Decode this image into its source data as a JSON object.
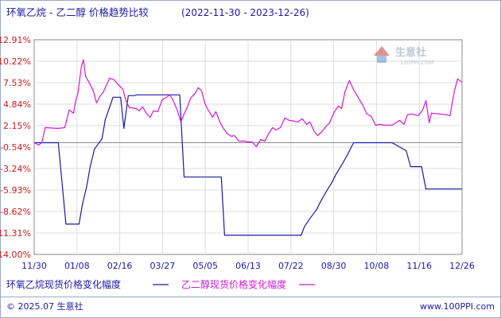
{
  "header": {
    "title_main": "环氧乙烷 - 乙二醇 价格趋势比较",
    "title_range": "(2022-11-30 - 2023-12-26)"
  },
  "logo": {
    "text": "生意社",
    "url_text": "100PPI.COM"
  },
  "legend": {
    "s1_label": "环氧乙烷现货价格变化幅度",
    "s2_label": "乙二醇现货价格变化幅度"
  },
  "footer": {
    "left": "© 2025.07 生意社",
    "right": "www.100PPI.com"
  },
  "colors": {
    "series1": "#1a1aa6",
    "series2": "#d21ad2",
    "grid": "#dddddd",
    "zero": "#888888",
    "title": "#1a1aa6"
  },
  "chart_data": {
    "type": "line",
    "title": "环氧乙烷 - 乙二醇 价格趋势比较",
    "subtitle": "(2022-11-30 - 2023-12-26)",
    "xlabel": "",
    "ylabel": "",
    "x_ticks": [
      "11/30",
      "01/08",
      "02/16",
      "03/27",
      "05/05",
      "06/13",
      "07/22",
      "08/30",
      "10/08",
      "11/16",
      "12/26"
    ],
    "y_ticks": [
      "12.91%",
      "10.22%",
      "7.53%",
      "4.84%",
      "2.15%",
      "-0.54%",
      "-3.24%",
      "-5.93%",
      "-8.62%",
      "-11.31%",
      "-14.00%"
    ],
    "ylim": [
      -14.0,
      12.91
    ],
    "xlim": [
      "2022-11-30",
      "2023-12-26"
    ],
    "grid": true,
    "legend_position": "bottom",
    "series": [
      {
        "name": "环氧乙烷现货价格变化幅度",
        "color": "#1a1aa6",
        "points": [
          [
            "2022-11-30",
            0
          ],
          [
            "2022-12-22",
            0
          ],
          [
            "2022-12-29",
            -10.2
          ],
          [
            "2023-01-10",
            -10.2
          ],
          [
            "2023-01-13",
            -7.8
          ],
          [
            "2023-01-17",
            -5.5
          ],
          [
            "2023-01-20",
            -3.1
          ],
          [
            "2023-01-24",
            -0.8
          ],
          [
            "2023-01-31",
            0.5
          ],
          [
            "2023-02-03",
            2.9
          ],
          [
            "2023-02-10",
            5.7
          ],
          [
            "2023-02-17",
            5.7
          ],
          [
            "2023-02-20",
            1.8
          ],
          [
            "2023-02-24",
            5.9
          ],
          [
            "2023-03-01",
            5.9
          ],
          [
            "2023-03-04",
            6.0
          ],
          [
            "2023-04-12",
            6.0
          ],
          [
            "2023-04-16",
            -4.3
          ],
          [
            "2023-05-20",
            -4.3
          ],
          [
            "2023-05-23",
            -11.6
          ],
          [
            "2023-08-01",
            -11.6
          ],
          [
            "2023-08-04",
            -10.5
          ],
          [
            "2023-08-09",
            -9.5
          ],
          [
            "2023-08-15",
            -8.4
          ],
          [
            "2023-08-19",
            -7.3
          ],
          [
            "2023-08-24",
            -6.1
          ],
          [
            "2023-08-29",
            -5.0
          ],
          [
            "2023-09-02",
            -3.9
          ],
          [
            "2023-09-07",
            -2.8
          ],
          [
            "2023-09-12",
            -1.6
          ],
          [
            "2023-09-16",
            -0.5
          ],
          [
            "2023-09-18",
            0
          ],
          [
            "2023-10-23",
            0
          ],
          [
            "2023-11-05",
            -1.0
          ],
          [
            "2023-11-09",
            -3.0
          ],
          [
            "2023-11-19",
            -3.0
          ],
          [
            "2023-11-23",
            -5.8
          ],
          [
            "2023-12-26",
            -5.8
          ]
        ]
      },
      {
        "name": "乙二醇现货价格变化幅度",
        "color": "#d21ad2",
        "points": [
          [
            "2022-11-30",
            0
          ],
          [
            "2022-12-04",
            -0.3
          ],
          [
            "2022-12-07",
            0
          ],
          [
            "2022-12-10",
            1.9
          ],
          [
            "2022-12-22",
            1.8
          ],
          [
            "2022-12-28",
            1.9
          ],
          [
            "2023-01-01",
            4.1
          ],
          [
            "2023-01-05",
            3.7
          ],
          [
            "2023-01-07",
            5.3
          ],
          [
            "2023-01-09",
            6.2
          ],
          [
            "2023-01-12",
            9.5
          ],
          [
            "2023-01-14",
            10.4
          ],
          [
            "2023-01-16",
            8.3
          ],
          [
            "2023-01-19",
            7.6
          ],
          [
            "2023-01-23",
            6.5
          ],
          [
            "2023-01-26",
            5.0
          ],
          [
            "2023-01-29",
            5.8
          ],
          [
            "2023-02-01",
            6.3
          ],
          [
            "2023-02-04",
            7.2
          ],
          [
            "2023-02-07",
            8.1
          ],
          [
            "2023-02-11",
            7.9
          ],
          [
            "2023-02-14",
            7.4
          ],
          [
            "2023-02-19",
            6.7
          ],
          [
            "2023-02-22",
            5.2
          ],
          [
            "2023-02-25",
            4.4
          ],
          [
            "2023-03-03",
            4.3
          ],
          [
            "2023-03-06",
            4.0
          ],
          [
            "2023-03-09",
            4.5
          ],
          [
            "2023-03-13",
            3.6
          ],
          [
            "2023-03-16",
            3.2
          ],
          [
            "2023-03-19",
            4.0
          ],
          [
            "2023-03-23",
            3.9
          ],
          [
            "2023-03-27",
            5.4
          ],
          [
            "2023-03-31",
            5.7
          ],
          [
            "2023-04-03",
            6.0
          ],
          [
            "2023-04-06",
            5.3
          ],
          [
            "2023-04-10",
            4.0
          ],
          [
            "2023-04-13",
            2.6
          ],
          [
            "2023-04-16",
            3.6
          ],
          [
            "2023-04-19",
            4.5
          ],
          [
            "2023-04-22",
            5.6
          ],
          [
            "2023-04-26",
            6.2
          ],
          [
            "2023-04-29",
            6.9
          ],
          [
            "2023-05-02",
            6.5
          ],
          [
            "2023-05-05",
            4.9
          ],
          [
            "2023-05-08",
            4.1
          ],
          [
            "2023-05-12",
            3.2
          ],
          [
            "2023-05-15",
            3.9
          ],
          [
            "2023-05-19",
            2.5
          ],
          [
            "2023-05-22",
            1.8
          ],
          [
            "2023-05-25",
            1.2
          ],
          [
            "2023-05-29",
            0.8
          ],
          [
            "2023-06-01",
            0.9
          ],
          [
            "2023-06-05",
            0.2
          ],
          [
            "2023-06-10",
            0.2
          ],
          [
            "2023-06-13",
            0.1
          ],
          [
            "2023-06-17",
            0.1
          ],
          [
            "2023-06-21",
            -0.5
          ],
          [
            "2023-06-25",
            0.4
          ],
          [
            "2023-06-29",
            0.2
          ],
          [
            "2023-07-02",
            1.1
          ],
          [
            "2023-07-06",
            1.9
          ],
          [
            "2023-07-09",
            1.6
          ],
          [
            "2023-07-13",
            1.9
          ],
          [
            "2023-07-17",
            3.1
          ],
          [
            "2023-07-21",
            2.8
          ],
          [
            "2023-07-26",
            2.7
          ],
          [
            "2023-07-29",
            2.6
          ],
          [
            "2023-08-02",
            3.0
          ],
          [
            "2023-08-06",
            2.3
          ],
          [
            "2023-08-09",
            2.6
          ],
          [
            "2023-08-13",
            1.4
          ],
          [
            "2023-08-16",
            0.9
          ],
          [
            "2023-08-20",
            1.4
          ],
          [
            "2023-08-24",
            2.1
          ],
          [
            "2023-08-27",
            2.5
          ],
          [
            "2023-08-31",
            3.8
          ],
          [
            "2023-09-04",
            4.6
          ],
          [
            "2023-09-07",
            4.3
          ],
          [
            "2023-09-10",
            6.4
          ],
          [
            "2023-09-14",
            7.8
          ],
          [
            "2023-09-18",
            6.6
          ],
          [
            "2023-09-22",
            5.7
          ],
          [
            "2023-09-26",
            4.8
          ],
          [
            "2023-09-30",
            3.6
          ],
          [
            "2023-10-04",
            3.3
          ],
          [
            "2023-10-08",
            2.2
          ],
          [
            "2023-10-12",
            2.3
          ],
          [
            "2023-10-18",
            2.2
          ],
          [
            "2023-10-23",
            2.2
          ],
          [
            "2023-10-30",
            2.8
          ],
          [
            "2023-11-03",
            2.3
          ],
          [
            "2023-11-06",
            3.5
          ],
          [
            "2023-11-10",
            3.6
          ],
          [
            "2023-11-16",
            3.4
          ],
          [
            "2023-11-20",
            4.1
          ],
          [
            "2023-11-23",
            5.3
          ],
          [
            "2023-11-26",
            2.5
          ],
          [
            "2023-11-28",
            3.7
          ],
          [
            "2023-12-12",
            3.5
          ],
          [
            "2023-12-15",
            3.4
          ],
          [
            "2023-12-19",
            6.5
          ],
          [
            "2023-12-22",
            8.0
          ],
          [
            "2023-12-26",
            7.6
          ]
        ]
      }
    ]
  }
}
